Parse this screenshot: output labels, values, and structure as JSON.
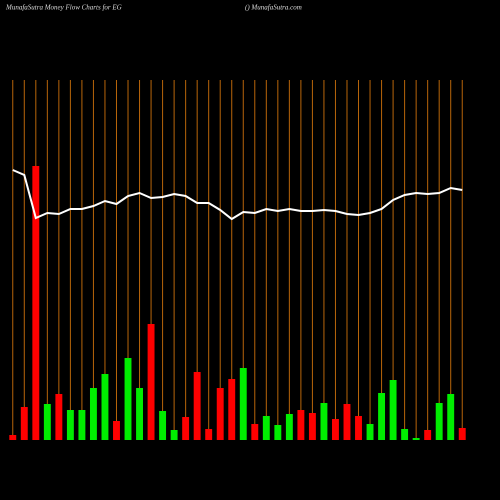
{
  "chart_data": {
    "type": "bar-line",
    "title": "MunafaSutra  Money Flow  Charts for EG",
    "subtitle": "() MunafaSutra.com",
    "categories": [
      null,
      null,
      null,
      null,
      null,
      null,
      null,
      null,
      null,
      null,
      null,
      null,
      null,
      null,
      null,
      null,
      null,
      null,
      null,
      null,
      null,
      null,
      null,
      null,
      null,
      null,
      null,
      null,
      null,
      null,
      null,
      null,
      null,
      null,
      null,
      null,
      null,
      null,
      null,
      null
    ],
    "ylim": [
      0,
      360
    ],
    "category_line_color": "#b8650a",
    "series": [
      {
        "kind": "bar",
        "values": [
          5,
          33,
          274,
          36,
          46,
          30,
          30,
          52,
          66,
          19,
          82,
          52,
          116,
          29,
          10,
          23,
          68,
          11,
          52,
          61,
          72,
          16,
          24,
          15,
          26,
          30,
          27,
          37,
          21,
          36,
          24,
          16,
          47,
          60,
          11,
          2,
          10,
          37,
          46,
          12
        ],
        "colors": [
          "#ff0000",
          "#ff0000",
          "#ff0000",
          "#00ee00",
          "#ff0000",
          "#00ee00",
          "#00ee00",
          "#00ee00",
          "#00ee00",
          "#ff0000",
          "#00ee00",
          "#00ee00",
          "#ff0000",
          "#00ee00",
          "#00ee00",
          "#ff0000",
          "#ff0000",
          "#ff0000",
          "#ff0000",
          "#ff0000",
          "#00ee00",
          "#ff0000",
          "#00ee00",
          "#00ee00",
          "#00ee00",
          "#ff0000",
          "#ff0000",
          "#00ee00",
          "#ff0000",
          "#ff0000",
          "#ff0000",
          "#00ee00",
          "#00ee00",
          "#00ee00",
          "#00ee00",
          "#00ee00",
          "#ff0000",
          "#00ee00",
          "#00ee00",
          "#ff0000"
        ]
      },
      {
        "kind": "line",
        "color": "#ffffff",
        "values": [
          270,
          265,
          222,
          227,
          226,
          231,
          231,
          234,
          239,
          236,
          244,
          247,
          242,
          243,
          246,
          244,
          237,
          237,
          230,
          221,
          228,
          227,
          231,
          229,
          231,
          229,
          229,
          230,
          229,
          226,
          225,
          227,
          231,
          240,
          245,
          247,
          246,
          247,
          252,
          250
        ]
      }
    ]
  }
}
